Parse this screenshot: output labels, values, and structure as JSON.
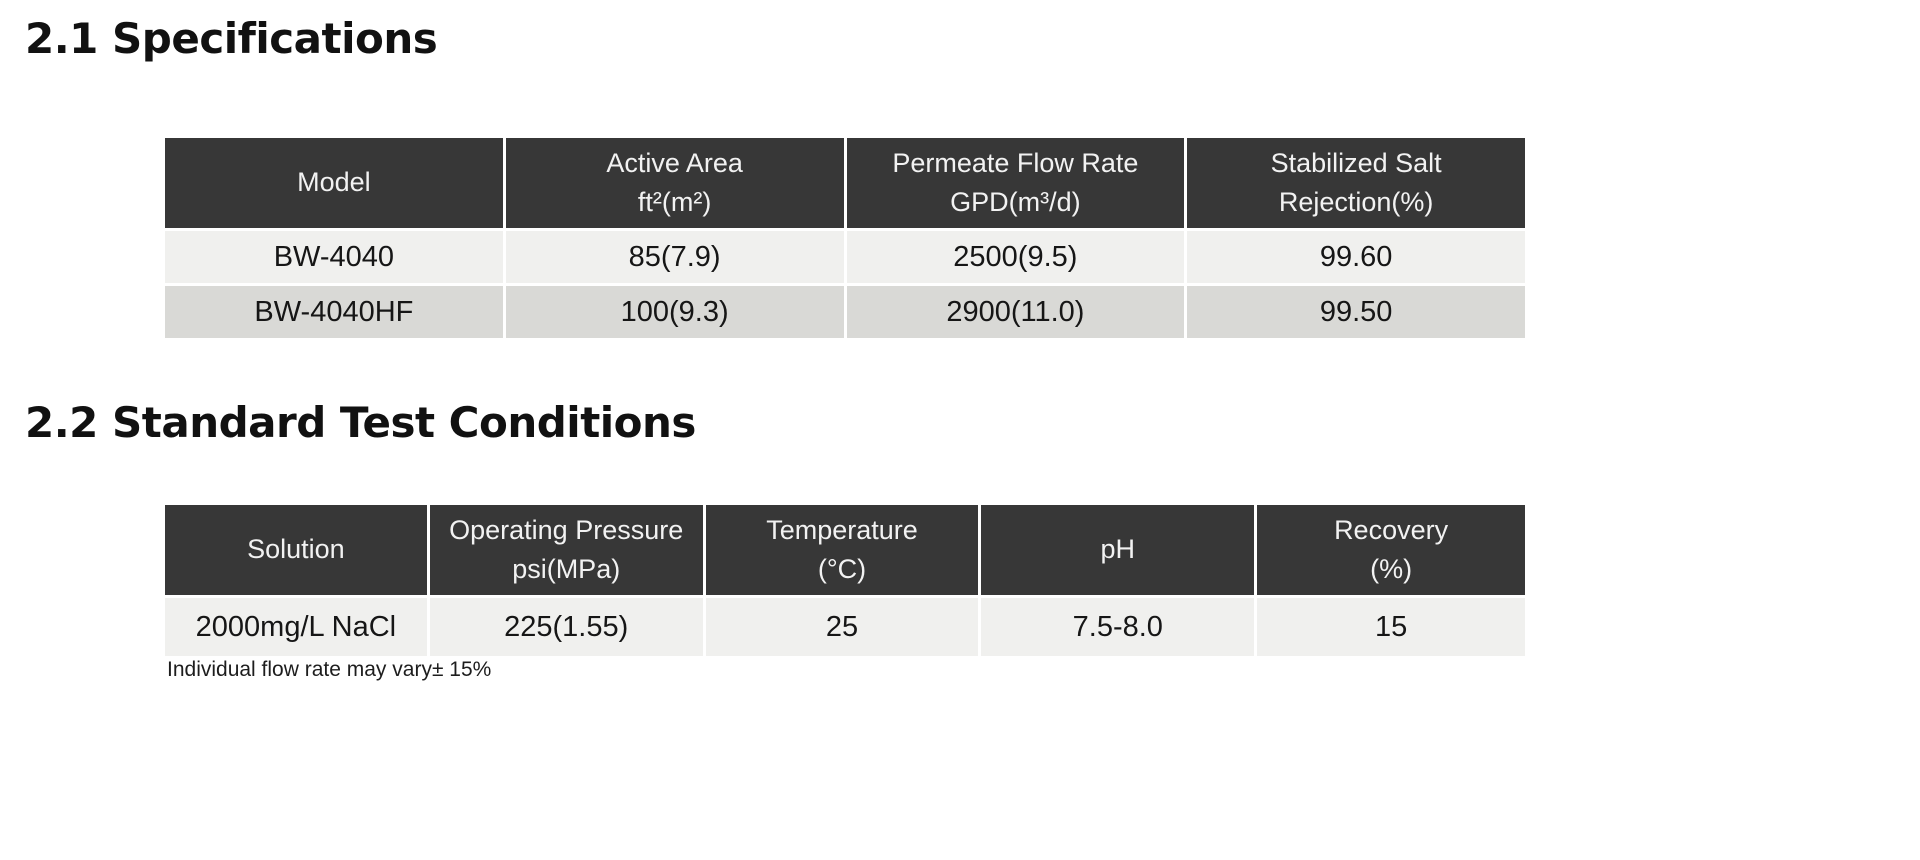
{
  "sections": {
    "specifications": {
      "title": "2.1 Specifications",
      "table": {
        "headers": [
          [
            "Model",
            ""
          ],
          [
            "Active Area",
            "ft²(m²)"
          ],
          [
            "Permeate Flow Rate",
            "GPD(m³/d)"
          ],
          [
            "Stabilized Salt",
            "Rejection(%)"
          ]
        ],
        "rows": [
          [
            "BW-4040",
            "85(7.9)",
            "2500(9.5)",
            "99.60"
          ],
          [
            "BW-4040HF",
            "100(9.3)",
            "2900(11.0)",
            "99.50"
          ]
        ]
      }
    },
    "test_conditions": {
      "title": "2.2 Standard Test Conditions",
      "table": {
        "headers": [
          [
            "Solution",
            ""
          ],
          [
            "Operating Pressure",
            "psi(MPa)"
          ],
          [
            "Temperature",
            "(°C)"
          ],
          [
            "pH",
            ""
          ],
          [
            "Recovery",
            "(%)"
          ]
        ],
        "rows": [
          [
            "2000mg/L NaCl",
            "225(1.55)",
            "25",
            "7.5-8.0",
            "15"
          ]
        ]
      },
      "footnote": "Individual flow rate may vary± 15%"
    }
  },
  "colors": {
    "table_header_bg": "#373737",
    "table_header_text": "#f2f2f2",
    "row_light_bg": "#f0f0ee",
    "row_dark_bg": "#d9d9d6",
    "heading_text": "#111111"
  }
}
